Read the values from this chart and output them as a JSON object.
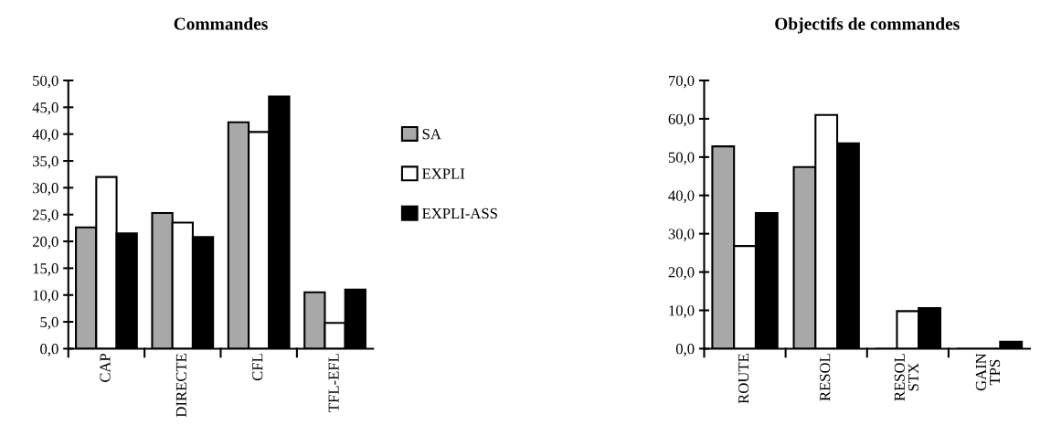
{
  "chart_data": [
    {
      "type": "bar",
      "title": "Commandes",
      "categories": [
        "CAP",
        "DIRECTE",
        "CFL",
        "TFL-EFL"
      ],
      "series": [
        {
          "name": "SA",
          "color": "#a8a8a8",
          "values": [
            22.6,
            25.3,
            42.2,
            10.5
          ]
        },
        {
          "name": "EXPLI",
          "color": "#ffffff",
          "values": [
            32.0,
            23.5,
            40.4,
            4.8
          ]
        },
        {
          "name": "EXPLI-ASS",
          "color": "#000000",
          "values": [
            21.5,
            20.8,
            47.0,
            11.0
          ]
        }
      ],
      "ylim": [
        0,
        50
      ],
      "yticks": [
        {
          "value": 0,
          "label": "0,0"
        },
        {
          "value": 5,
          "label": "5,0"
        },
        {
          "value": 10,
          "label": "10,0"
        },
        {
          "value": 15,
          "label": "15,0"
        },
        {
          "value": 20,
          "label": "20,0"
        },
        {
          "value": 25,
          "label": "25,0"
        },
        {
          "value": 30,
          "label": "30,0"
        },
        {
          "value": 35,
          "label": "35,0"
        },
        {
          "value": 40,
          "label": "40,0"
        },
        {
          "value": 45,
          "label": "45,0"
        },
        {
          "value": 50,
          "label": "50,0"
        }
      ],
      "grid": false,
      "legend": "right"
    },
    {
      "type": "bar",
      "title": "Objectifs de commandes",
      "categories": [
        "ROUTE",
        "RESOL",
        "RESOL\nSTX",
        "GAIN\nTPS"
      ],
      "series": [
        {
          "color": "#a8a8a8",
          "values": [
            52.8,
            47.4,
            0,
            0
          ]
        },
        {
          "color": "#ffffff",
          "values": [
            26.8,
            61.0,
            9.8,
            0
          ]
        },
        {
          "color": "#000000",
          "values": [
            35.4,
            53.6,
            10.6,
            1.8
          ]
        }
      ],
      "ylim": [
        0,
        70
      ],
      "yticks": [
        {
          "value": 0,
          "label": "0,0"
        },
        {
          "value": 10,
          "label": "10,0"
        },
        {
          "value": 20,
          "label": "20,0"
        },
        {
          "value": 30,
          "label": "30,0"
        },
        {
          "value": 40,
          "label": "40,0"
        },
        {
          "value": 50,
          "label": "50,0"
        },
        {
          "value": 60,
          "label": "60,0"
        },
        {
          "value": 70,
          "label": "70,0"
        }
      ],
      "grid": false,
      "legend": false
    }
  ]
}
